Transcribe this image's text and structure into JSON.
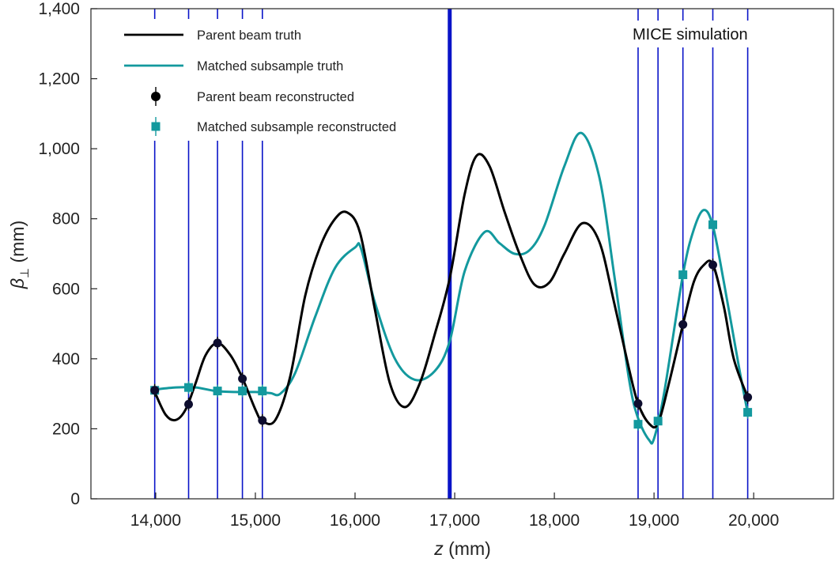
{
  "chart_data": {
    "type": "line",
    "title": "",
    "xlabel": {
      "var": "z",
      "unit": " (mm)"
    },
    "ylabel": {
      "var": "β",
      "sub": "⊥",
      "unit": " (mm)"
    },
    "xlim": [
      13350,
      20800
    ],
    "ylim": [
      0,
      1400
    ],
    "xticks": [
      14000,
      15000,
      16000,
      17000,
      18000,
      19000,
      20000
    ],
    "xtick_labels": [
      "14,000",
      "15,000",
      "16,000",
      "17,000",
      "18,000",
      "19,000",
      "20,000"
    ],
    "yticks": [
      0,
      200,
      400,
      600,
      800,
      1000,
      1200,
      1400
    ],
    "ytick_labels": [
      "0",
      "200",
      "400",
      "600",
      "800",
      "1,000",
      "1,200",
      "1,400"
    ],
    "annotation": "MICE simulation",
    "legend_position": "top-left",
    "colors": {
      "parent": "#000000",
      "matched": "#13999e",
      "detector": "#0a14c8"
    },
    "detector_planes": [
      13990,
      14330,
      14620,
      14870,
      15070,
      16950,
      18840,
      19040,
      19290,
      19590,
      19940
    ],
    "series": [
      {
        "name": "Parent beam truth",
        "kind": "line",
        "color": "#000000",
        "x": [
          13990,
          14100,
          14200,
          14300,
          14400,
          14500,
          14620,
          14750,
          14870,
          15000,
          15070,
          15200,
          15350,
          15500,
          15650,
          15800,
          15920,
          16050,
          16200,
          16350,
          16500,
          16650,
          16800,
          16950,
          17100,
          17220,
          17350,
          17500,
          17650,
          17800,
          17950,
          18100,
          18280,
          18450,
          18600,
          18750,
          18840,
          18950,
          19040,
          19150,
          19290,
          19400,
          19500,
          19590,
          19700,
          19800,
          19940
        ],
        "y": [
          305,
          240,
          225,
          255,
          330,
          410,
          445,
          410,
          345,
          255,
          222,
          225,
          350,
          580,
          720,
          800,
          818,
          760,
          540,
          330,
          262,
          330,
          470,
          630,
          870,
          980,
          950,
          820,
          700,
          612,
          618,
          700,
          787,
          735,
          560,
          370,
          272,
          215,
          215,
          330,
          498,
          620,
          668,
          670,
          550,
          400,
          290
        ]
      },
      {
        "name": "Matched subsample truth",
        "kind": "line",
        "color": "#13999e",
        "x": [
          13990,
          14200,
          14400,
          14600,
          14800,
          15000,
          15150,
          15250,
          15400,
          15600,
          15800,
          16000,
          16060,
          16200,
          16400,
          16600,
          16800,
          16950,
          17100,
          17300,
          17450,
          17600,
          17750,
          17900,
          18100,
          18270,
          18450,
          18600,
          18750,
          18840,
          18950,
          19000,
          19100,
          19290,
          19400,
          19500,
          19590,
          19700,
          19850,
          19940
        ],
        "y": [
          312,
          318,
          318,
          308,
          305,
          305,
          302,
          300,
          360,
          520,
          660,
          718,
          715,
          560,
          400,
          340,
          365,
          450,
          650,
          762,
          730,
          700,
          710,
          780,
          950,
          1045,
          920,
          640,
          340,
          230,
          168,
          172,
          300,
          640,
          770,
          825,
          780,
          620,
          380,
          245
        ]
      },
      {
        "name": "Parent beam reconstructed",
        "kind": "marker-circle",
        "color": "#000000",
        "x": [
          13990,
          14330,
          14620,
          14870,
          15070,
          18840,
          19290,
          19590,
          19940
        ],
        "y": [
          310,
          270,
          445,
          343,
          224,
          272,
          498,
          668,
          290
        ]
      },
      {
        "name": "Matched subsample reconstructed",
        "kind": "marker-square",
        "color": "#13999e",
        "x": [
          13990,
          14330,
          14620,
          14870,
          15070,
          18840,
          19040,
          19290,
          19590,
          19940
        ],
        "y": [
          310,
          318,
          308,
          308,
          308,
          213,
          222,
          640,
          783,
          247
        ]
      }
    ]
  }
}
